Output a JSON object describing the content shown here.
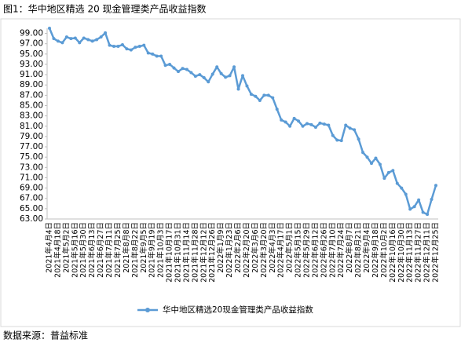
{
  "chart_data": {
    "type": "line",
    "title": "图1：华中地区精选 20 现金管理类产品收益指数",
    "source": "数据来源：普益标准",
    "categories": [
      "2021年4月4日",
      null,
      "2021年4月18日",
      null,
      "2021年5月2日",
      null,
      "2021年5月16日",
      null,
      "2021年5月30日",
      null,
      "2021年6月13日",
      null,
      "2021年6月27日",
      null,
      "2021年7月11日",
      null,
      "2021年7月25日",
      null,
      "2021年8月8日",
      null,
      "2021年8月22日",
      null,
      "2021年9月5日",
      null,
      "2021年9月19日",
      null,
      "2021年10月3日",
      null,
      "2021年10月17日",
      null,
      "2021年10月31日",
      null,
      "2021年11月14日",
      null,
      "2021年11月28日",
      null,
      "2021年12月12日",
      null,
      "2021年12月26日",
      null,
      "2022年1月9日",
      null,
      "2022年1月23日",
      null,
      "2022年2月6日",
      null,
      "2022年2月20日",
      null,
      "2022年3月6日",
      null,
      "2022年3月20日",
      null,
      "2022年4月3日",
      null,
      "2022年4月17日",
      null,
      "2022年5月1日",
      null,
      "2022年5月15日",
      null,
      "2022年5月29日",
      null,
      "2022年6月12日",
      null,
      "2022年6月26日",
      null,
      "2022年7月10日",
      null,
      "2022年7月24日",
      null,
      "2022年8月7日",
      null,
      "2022年8月21日",
      null,
      "2022年9月4日",
      null,
      "2022年9月18日",
      null,
      "2022年10月2日",
      null,
      "2022年10月16日",
      null,
      "2022年10月30日",
      null,
      "2022年11月13日",
      null,
      "2022年11月27日",
      null,
      "2022年12月11日",
      null,
      "2022年12月25日"
    ],
    "series": [
      {
        "name": "华中地区精选20现金管理类产品收益指数",
        "color": "#5b9bd5",
        "values": [
          100.0,
          98.0,
          97.5,
          97.2,
          98.3,
          98.0,
          98.1,
          97.2,
          98.1,
          97.8,
          97.5,
          97.8,
          98.3,
          99.1,
          96.7,
          96.5,
          96.5,
          96.8,
          96.0,
          95.8,
          96.3,
          96.5,
          96.7,
          95.2,
          95.0,
          94.6,
          94.6,
          92.8,
          93.0,
          92.3,
          91.6,
          92.2,
          92.0,
          91.4,
          90.7,
          91.0,
          90.4,
          89.6,
          91.1,
          92.5,
          91.2,
          90.5,
          90.8,
          92.5,
          88.2,
          90.8,
          88.8,
          87.2,
          86.8,
          86.0,
          87.0,
          87.0,
          86.5,
          84.3,
          82.2,
          81.8,
          81.0,
          82.5,
          82.0,
          81.0,
          81.5,
          81.3,
          80.8,
          81.6,
          81.4,
          81.2,
          79.2,
          78.3,
          78.2,
          81.2,
          80.6,
          80.3,
          78.5,
          75.9,
          75.0,
          73.8,
          74.8,
          73.6,
          70.9,
          72.0,
          72.4,
          69.9,
          69.0,
          67.8,
          64.9,
          65.4,
          66.7,
          64.3,
          63.9,
          66.8,
          69.5
        ]
      }
    ],
    "ylim": [
      63,
      100
    ],
    "yticks": [
      {
        "value": 63,
        "label": "63.00"
      },
      {
        "value": 65,
        "label": "65.00"
      },
      {
        "value": 67,
        "label": "67.00"
      },
      {
        "value": 69,
        "label": "69.00"
      },
      {
        "value": 71,
        "label": "71.00"
      },
      {
        "value": 73,
        "label": "73.00"
      },
      {
        "value": 75,
        "label": "75.00"
      },
      {
        "value": 77,
        "label": "77.00"
      },
      {
        "value": 79,
        "label": "79.00"
      },
      {
        "value": 81,
        "label": "81.00"
      },
      {
        "value": 83,
        "label": "83.00"
      },
      {
        "value": 85,
        "label": "85.00"
      },
      {
        "value": 87,
        "label": "87.00"
      },
      {
        "value": 89,
        "label": "89.00"
      },
      {
        "value": 91,
        "label": "91.00"
      },
      {
        "value": 93,
        "label": "93.00"
      },
      {
        "value": 95,
        "label": "95.00"
      },
      {
        "value": 97,
        "label": "97.00"
      },
      {
        "value": 99,
        "label": "99.00"
      }
    ],
    "legend": "bottom"
  }
}
